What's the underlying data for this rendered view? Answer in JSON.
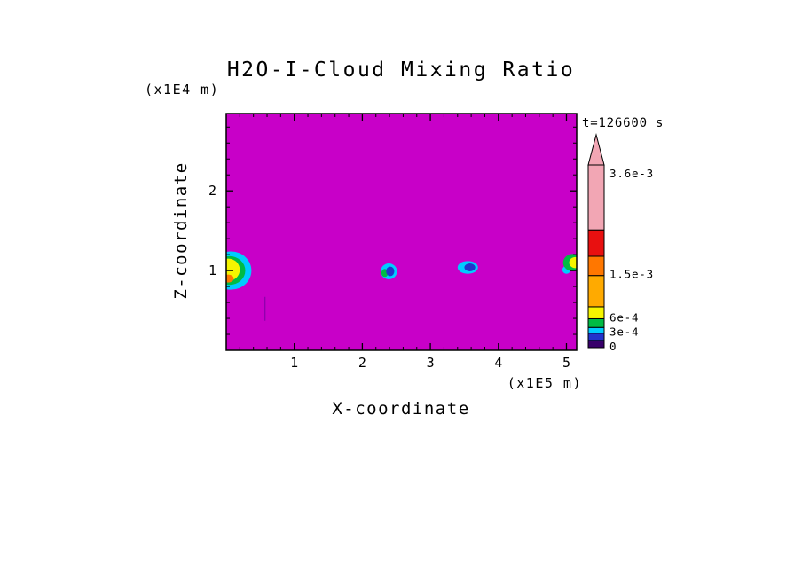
{
  "chart_data": {
    "type": "heatmap",
    "title": "H2O-I-Cloud Mixing Ratio",
    "xlabel": "X-coordinate",
    "ylabel": "Z-coordinate",
    "x_unit_label": "(x1E5 m)",
    "y_unit_label": "(x1E4 m)",
    "time_annotation": "t=126600 s",
    "xlim": [
      0,
      5.15
    ],
    "ylim": [
      0,
      2.97
    ],
    "x_major_ticks": [
      1,
      2,
      3,
      4,
      5
    ],
    "y_major_ticks": [
      1,
      2
    ],
    "x_minor_step": 0.2,
    "y_minor_step": 0.2,
    "background_color": "#c800c8",
    "frame_color": "#000000",
    "features": [
      {
        "shape": "ellipse",
        "cx": 0.07,
        "cy": 1.0,
        "rx": 0.3,
        "ry": 0.24,
        "color": "#00ccff"
      },
      {
        "shape": "ellipse",
        "cx": 0.05,
        "cy": 1.0,
        "rx": 0.23,
        "ry": 0.18,
        "color": "#00bb44"
      },
      {
        "shape": "ellipse",
        "cx": 0.03,
        "cy": 1.01,
        "rx": 0.17,
        "ry": 0.14,
        "color": "#f5f500"
      },
      {
        "shape": "ellipse",
        "cx": 0.03,
        "cy": 0.9,
        "rx": 0.08,
        "ry": 0.05,
        "color": "#ff7700"
      },
      {
        "shape": "ellipse",
        "cx": 2.39,
        "cy": 0.99,
        "rx": 0.12,
        "ry": 0.1,
        "color": "#00ccff"
      },
      {
        "shape": "ellipse",
        "cx": 2.33,
        "cy": 0.97,
        "rx": 0.05,
        "ry": 0.05,
        "color": "#00bb44"
      },
      {
        "shape": "ellipse",
        "cx": 2.41,
        "cy": 0.99,
        "rx": 0.06,
        "ry": 0.06,
        "color": "#2233cc"
      },
      {
        "shape": "ellipse",
        "cx": 3.55,
        "cy": 1.04,
        "rx": 0.15,
        "ry": 0.08,
        "color": "#00ccff"
      },
      {
        "shape": "ellipse",
        "cx": 3.58,
        "cy": 1.04,
        "rx": 0.08,
        "ry": 0.05,
        "color": "#2233cc"
      },
      {
        "shape": "ellipse",
        "cx": 5.0,
        "cy": 1.01,
        "rx": 0.06,
        "ry": 0.05,
        "color": "#00ccff"
      },
      {
        "shape": "ellipse",
        "cx": 5.1,
        "cy": 1.1,
        "rx": 0.15,
        "ry": 0.11,
        "color": "#00bb44"
      },
      {
        "shape": "ellipse",
        "cx": 5.13,
        "cy": 1.1,
        "rx": 0.09,
        "ry": 0.07,
        "color": "#f5f500"
      },
      {
        "shape": "vline",
        "x": 0.57,
        "z1": 0.37,
        "z2": 0.67,
        "color": "#8800aa",
        "width": 1.2
      }
    ],
    "colorbar": {
      "min": 0,
      "max": 0.0038,
      "overflow_arrow": true,
      "labels": [
        {
          "value": 0.0036,
          "text": "3.6e-3"
        },
        {
          "value": 0.0015,
          "text": "1.5e-3"
        },
        {
          "value": 0.0006,
          "text": "6e-4"
        },
        {
          "value": 0.0003,
          "text": "3e-4"
        },
        {
          "value": 0,
          "text": "0"
        }
      ],
      "segments": [
        {
          "from": 0,
          "to": 0.00015,
          "color": "#38006b"
        },
        {
          "from": 0.00015,
          "to": 0.0003,
          "color": "#2233cc"
        },
        {
          "from": 0.0003,
          "to": 0.00042,
          "color": "#00ccff"
        },
        {
          "from": 0.00042,
          "to": 0.0006,
          "color": "#00bb44"
        },
        {
          "from": 0.0006,
          "to": 0.00085,
          "color": "#f5f500"
        },
        {
          "from": 0.00085,
          "to": 0.0015,
          "color": "#ffaa00"
        },
        {
          "from": 0.0015,
          "to": 0.0019,
          "color": "#ff7700"
        },
        {
          "from": 0.0019,
          "to": 0.00245,
          "color": "#e81010"
        },
        {
          "from": 0.00245,
          "to": 0.0038,
          "color": "#f2a6b4"
        }
      ]
    }
  }
}
